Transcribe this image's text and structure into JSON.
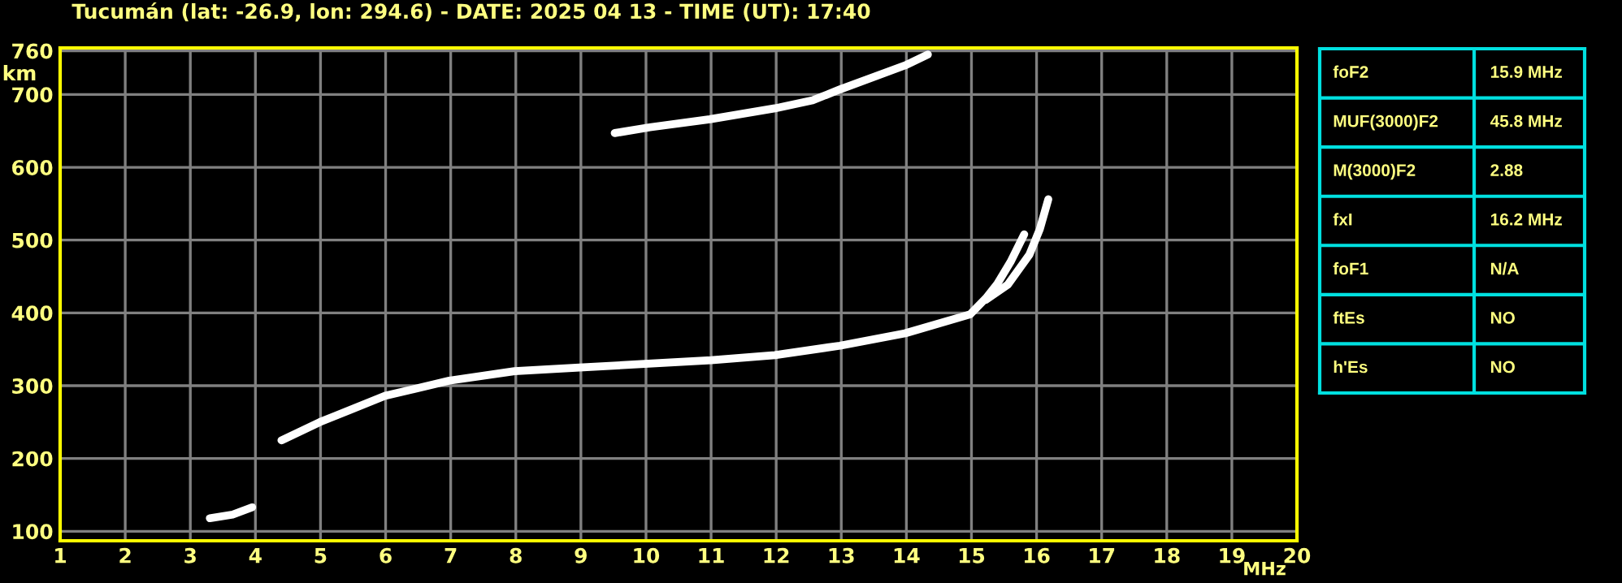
{
  "chart_data": [
    {
      "type": "line",
      "title": "Tucumán (lat: -26.9, lon: 294.6) - DATE: 2025 04 13 - TIME (UT): 17:40",
      "xlabel": "MHz",
      "ylabel": "km",
      "series": [
        {
          "color": "#ffffff",
          "x": [
            4.4,
            4.99,
            5.99,
            6.98,
            7.98,
            8.98,
            9.98,
            11.0,
            11.98,
            12.98,
            13.98,
            14.98,
            15.22,
            15.39,
            15.6,
            15.81
          ],
          "values": [
            225,
            250,
            286,
            307,
            320,
            325,
            330,
            335,
            342,
            355,
            372,
            398,
            420,
            439,
            470,
            508
          ]
        },
        {
          "color": "#ffffff",
          "x": [
            15.22,
            15.56,
            15.89,
            16.05,
            16.18
          ],
          "values": [
            418,
            439,
            480,
            515,
            556
          ]
        },
        {
          "color": "#ffffff",
          "x": [
            9.52,
            10.06,
            10.98,
            11.98,
            12.56,
            12.98,
            13.98,
            14.33
          ],
          "values": [
            647,
            655,
            666,
            681,
            692,
            707,
            740,
            755
          ]
        },
        {
          "color": "#ffffff",
          "x": [
            3.3,
            3.65,
            3.95
          ],
          "values": [
            118,
            123,
            133
          ]
        }
      ],
      "xlim": [
        1,
        20
      ],
      "ylim": [
        87,
        764
      ],
      "xticks": [
        1,
        2,
        3,
        4,
        5,
        6,
        7,
        8,
        9,
        10,
        11,
        12,
        13,
        14,
        15,
        16,
        17,
        18,
        19,
        20
      ],
      "yticks": [
        100,
        200,
        300,
        400,
        500,
        600,
        700,
        760
      ],
      "grid": true
    },
    {
      "type": "other",
      "categories": [
        "foF2",
        "MUF(3000)F2",
        "M(3000)F2",
        "fxI",
        "foF1",
        "ftEs",
        "h'Es"
      ],
      "value_labels": [
        "15.9 MHz",
        "45.8 MHz",
        "2.88",
        "16.2 MHz",
        "N/A",
        "NO",
        "NO"
      ]
    }
  ]
}
